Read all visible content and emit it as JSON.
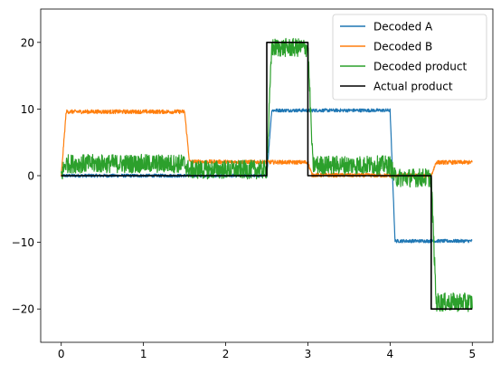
{
  "chart_data": {
    "type": "line",
    "title": "",
    "xlabel": "",
    "ylabel": "",
    "xlim": [
      -0.25,
      5.25
    ],
    "ylim": [
      -25,
      25
    ],
    "xticks": [
      0,
      1,
      2,
      3,
      4,
      5
    ],
    "yticks": [
      -20,
      -10,
      0,
      10,
      20
    ],
    "xtick_labels": [
      "0",
      "1",
      "2",
      "3",
      "4",
      "5"
    ],
    "ytick_labels": [
      "−20",
      "−10",
      "0",
      "10",
      "20"
    ],
    "grid": false,
    "legend_position": "top-right",
    "series": [
      {
        "name": "Decoded A",
        "color": "#1f77b4",
        "noise": 0.25,
        "x": [
          0,
          2.5,
          2.56,
          3.0,
          3.08,
          4.0,
          4.06,
          5.0
        ],
        "y": [
          0,
          0,
          9.8,
          9.8,
          9.8,
          9.8,
          -9.8,
          -9.8
        ]
      },
      {
        "name": "Decoded B",
        "color": "#ff7f0e",
        "noise": 0.3,
        "x": [
          0,
          0.06,
          1.5,
          1.56,
          3.0,
          3.05,
          4.5,
          4.56,
          5.0
        ],
        "y": [
          0,
          9.6,
          9.6,
          2.1,
          2.0,
          0.1,
          0.0,
          2.0,
          2.0
        ],
        "tail_end": 5.0
      },
      {
        "name": "Decoded product",
        "color": "#2ca02c",
        "noise": 1.4,
        "x": [
          0,
          0.05,
          1.5,
          1.55,
          2.5,
          2.56,
          3.0,
          3.06,
          4.0,
          4.06,
          4.5,
          4.56,
          5.0
        ],
        "y": [
          0,
          1.8,
          1.8,
          0.9,
          0.9,
          19.2,
          19.2,
          1.6,
          1.6,
          -0.3,
          -0.3,
          -19.0,
          -19.0
        ]
      },
      {
        "name": "Actual product",
        "color": "#000000",
        "noise": 0,
        "x": [
          0,
          2.5,
          2.5,
          3.0,
          3.0,
          4.5,
          4.5,
          5.0
        ],
        "y": [
          0,
          0,
          20,
          20,
          0,
          0,
          -20,
          -20
        ]
      }
    ]
  }
}
